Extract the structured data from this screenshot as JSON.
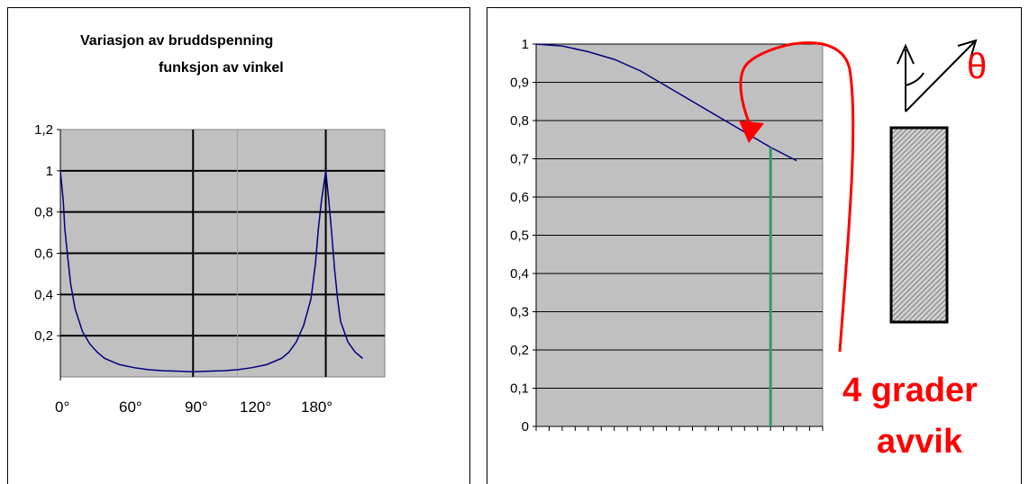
{
  "chart_data": [
    {
      "type": "line",
      "title_line1": "Variasjon av bruddspenning",
      "title_line2": "funksjon av vinkel",
      "xlabel": "",
      "ylabel": "",
      "ylim": [
        0,
        1.2
      ],
      "xlim": [
        0,
        220
      ],
      "y_ticks": [
        "0,2",
        "0,4",
        "0,6",
        "0,8",
        "1",
        "1,2"
      ],
      "x_ticks": [
        "0°",
        "60°",
        "90°",
        "120°",
        "180°"
      ],
      "grid": true,
      "series_color": "#000080",
      "plot_bg": "#c0c0c0",
      "series": [
        {
          "x": [
            0,
            2,
            3,
            5,
            7,
            10,
            15,
            20,
            25,
            30,
            40,
            50,
            60,
            70,
            80,
            90,
            100,
            110,
            120,
            130,
            140,
            150,
            155,
            160,
            165,
            170,
            173,
            175,
            177,
            178,
            180,
            182,
            184,
            186,
            188,
            190,
            195,
            200,
            205
          ],
          "y": [
            1.0,
            0.85,
            0.72,
            0.58,
            0.45,
            0.33,
            0.22,
            0.16,
            0.12,
            0.09,
            0.06,
            0.045,
            0.035,
            0.03,
            0.028,
            0.025,
            0.028,
            0.03,
            0.035,
            0.045,
            0.06,
            0.09,
            0.12,
            0.17,
            0.25,
            0.38,
            0.55,
            0.72,
            0.85,
            0.9,
            1.0,
            0.86,
            0.7,
            0.52,
            0.38,
            0.27,
            0.17,
            0.12,
            0.09
          ]
        }
      ]
    },
    {
      "type": "line",
      "title": "",
      "xlabel": "",
      "ylabel": "",
      "ylim": [
        0,
        1
      ],
      "y_ticks": [
        "0",
        "0,1",
        "0,2",
        "0,3",
        "0,4",
        "0,5",
        "0,6",
        "0,7",
        "0,8",
        "0,9",
        "1"
      ],
      "grid": true,
      "series_color": "#000080",
      "marker_color": "#339966",
      "plot_bg": "#c0c0c0",
      "series": [
        {
          "x": [
            0,
            0.5,
            1,
            1.5,
            2,
            2.5,
            3,
            3.5,
            4,
            4.5,
            5
          ],
          "y": [
            1.0,
            0.995,
            0.98,
            0.96,
            0.93,
            0.89,
            0.85,
            0.81,
            0.77,
            0.73,
            0.695
          ]
        }
      ],
      "marker_x": 4.5,
      "annotation": {
        "line1": "4 grader",
        "line2": "avvik",
        "color": "#ff0000",
        "theta_symbol": "θ"
      }
    }
  ]
}
